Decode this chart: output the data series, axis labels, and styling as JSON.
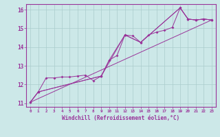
{
  "title": "",
  "xlabel": "Windchill (Refroidissement éolien,°C)",
  "ylabel": "",
  "bg_color": "#cce8e8",
  "grid_color": "#aacccc",
  "line_color": "#993399",
  "xlim": [
    -0.5,
    23.5
  ],
  "ylim": [
    10.8,
    16.3
  ],
  "xticks": [
    0,
    1,
    2,
    3,
    4,
    5,
    6,
    7,
    8,
    9,
    10,
    11,
    12,
    13,
    14,
    15,
    16,
    17,
    18,
    19,
    20,
    21,
    22,
    23
  ],
  "yticks": [
    11,
    12,
    13,
    14,
    15,
    16
  ],
  "series1_x": [
    0,
    1,
    2,
    3,
    4,
    5,
    6,
    7,
    8,
    9,
    10,
    11,
    12,
    13,
    14,
    15,
    16,
    17,
    18,
    19,
    20,
    21,
    22,
    23
  ],
  "series1_y": [
    11.05,
    11.6,
    12.35,
    12.35,
    12.4,
    12.4,
    12.45,
    12.5,
    12.2,
    12.45,
    13.3,
    13.55,
    14.65,
    14.6,
    14.25,
    14.65,
    14.8,
    14.9,
    15.05,
    16.1,
    15.5,
    15.45,
    15.5,
    15.45
  ],
  "series2_x": [
    0,
    23
  ],
  "series2_y": [
    11.05,
    15.45
  ],
  "series3_x": [
    0,
    1,
    9,
    12,
    14,
    19,
    20,
    21,
    22,
    23
  ],
  "series3_y": [
    11.05,
    11.6,
    12.45,
    14.65,
    14.25,
    16.1,
    15.5,
    15.45,
    15.5,
    15.45
  ],
  "series4_x": [
    0,
    1,
    9,
    10,
    12,
    14,
    19,
    20,
    21,
    22,
    23
  ],
  "series4_y": [
    11.05,
    11.6,
    12.45,
    13.3,
    14.65,
    14.25,
    16.1,
    15.5,
    15.45,
    15.5,
    15.45
  ]
}
